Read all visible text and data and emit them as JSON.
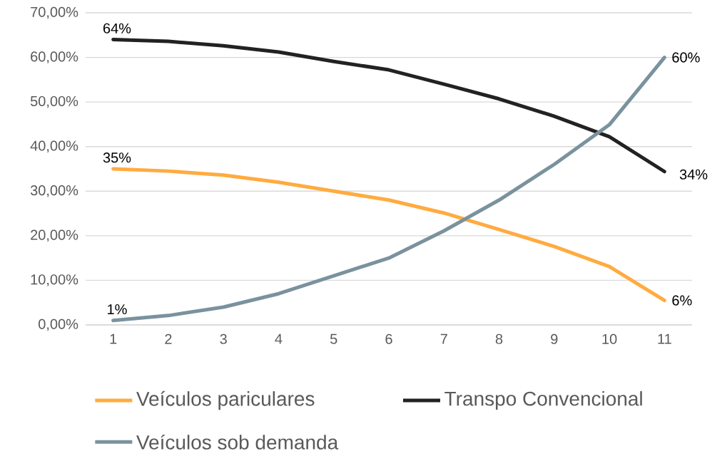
{
  "chart_data": {
    "type": "line",
    "categories": [
      "1",
      "2",
      "3",
      "4",
      "5",
      "6",
      "7",
      "8",
      "9",
      "10",
      "11"
    ],
    "series": [
      {
        "name": "Veículos pariculares",
        "color": "#ffab40",
        "values": [
          35.0,
          34.5,
          33.6,
          32.0,
          30.0,
          28.0,
          25.1,
          21.4,
          17.6,
          13.1,
          5.5
        ],
        "value_labels": [
          "35%",
          null,
          null,
          null,
          null,
          null,
          null,
          null,
          null,
          null,
          "6%"
        ]
      },
      {
        "name": "Transpo Convencional",
        "color": "#222222",
        "values": [
          64.0,
          63.6,
          62.6,
          61.2,
          59.1,
          57.2,
          54.0,
          50.7,
          46.8,
          42.2,
          34.4
        ],
        "value_labels": [
          "64%",
          null,
          null,
          null,
          null,
          null,
          null,
          null,
          null,
          null,
          "34%"
        ]
      },
      {
        "name": "Veículos sob demanda",
        "color": "#7a929e",
        "values": [
          1.0,
          2.1,
          4.0,
          7.0,
          11.0,
          15.0,
          21.1,
          28.0,
          36.0,
          44.9,
          60.0
        ],
        "value_labels": [
          "1%",
          null,
          null,
          null,
          null,
          null,
          null,
          null,
          null,
          null,
          "60%"
        ]
      }
    ],
    "ylim": [
      0,
      70
    ],
    "yticks": [
      {
        "value": 0,
        "label": "0,00%"
      },
      {
        "value": 10,
        "label": "10,00%"
      },
      {
        "value": 20,
        "label": "20,00%"
      },
      {
        "value": 30,
        "label": "30,00%"
      },
      {
        "value": 40,
        "label": "40,00%"
      },
      {
        "value": 50,
        "label": "50,00%"
      },
      {
        "value": 60,
        "label": "60,00%"
      },
      {
        "value": 70,
        "label": "70,00%"
      }
    ],
    "grid": "y",
    "legend": "bottom",
    "marker": "none",
    "line_style": "solid"
  }
}
